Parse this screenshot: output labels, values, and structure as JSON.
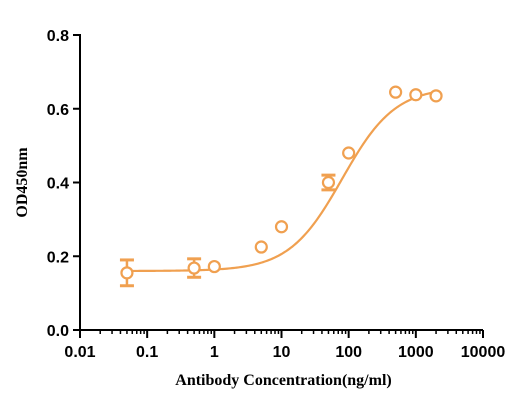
{
  "chart_data": {
    "type": "scatter",
    "title": "",
    "xlabel": "Antibody Concentration(ng/ml)",
    "ylabel": "OD450nm",
    "xscale": "log",
    "xlim": [
      0.01,
      10000
    ],
    "ylim": [
      0.0,
      0.8
    ],
    "xticks": [
      "0.01",
      "0.1",
      "1",
      "10",
      "100",
      "1000",
      "10000"
    ],
    "xtick_values": [
      0.01,
      0.1,
      1,
      10,
      100,
      1000,
      10000
    ],
    "yticks": [
      "0.0",
      "0.2",
      "0.4",
      "0.6",
      "0.8"
    ],
    "ytick_values": [
      0.0,
      0.2,
      0.4,
      0.6,
      0.8
    ],
    "grid": false,
    "legend": "none",
    "color": "#F0A050",
    "points": [
      {
        "x": 0.05,
        "y": 0.155,
        "err": 0.035
      },
      {
        "x": 0.5,
        "y": 0.168,
        "err": 0.025
      },
      {
        "x": 1,
        "y": 0.172,
        "err": 0
      },
      {
        "x": 5,
        "y": 0.225,
        "err": 0
      },
      {
        "x": 10,
        "y": 0.28,
        "err": 0
      },
      {
        "x": 50,
        "y": 0.4,
        "err": 0.02
      },
      {
        "x": 100,
        "y": 0.48,
        "err": 0
      },
      {
        "x": 500,
        "y": 0.645,
        "err": 0
      },
      {
        "x": 1000,
        "y": 0.638,
        "err": 0
      },
      {
        "x": 2000,
        "y": 0.635,
        "err": 0
      }
    ],
    "fit_curve": {
      "model": "4PL",
      "bottom": 0.16,
      "top": 0.66,
      "ec50": 80,
      "hill": 1.1,
      "x_range": [
        0.05,
        2000
      ]
    }
  }
}
